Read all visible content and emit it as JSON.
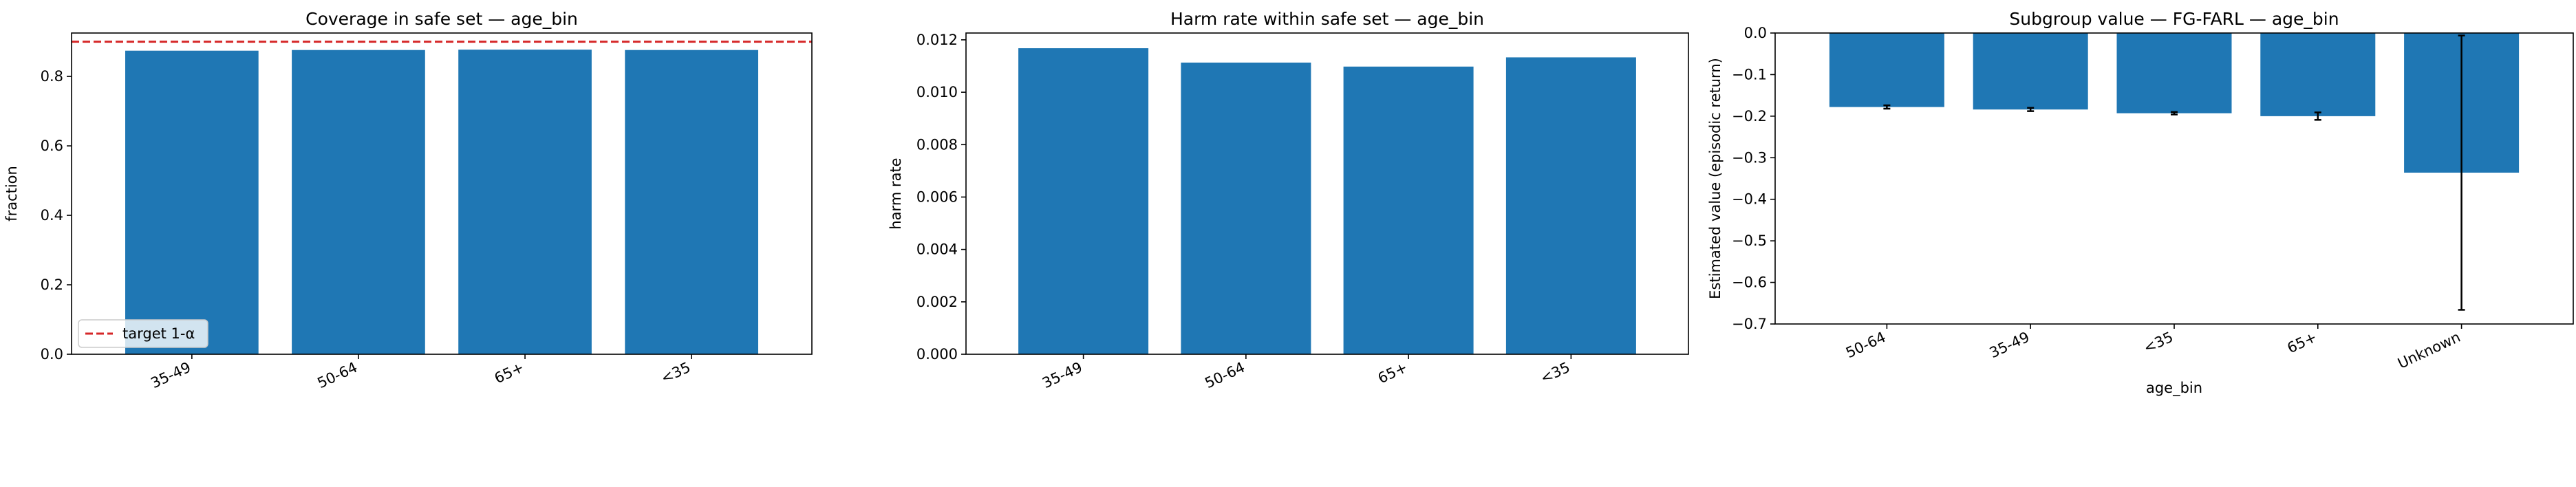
{
  "chart_data": [
    {
      "type": "bar",
      "title": "Coverage in safe set — age_bin",
      "xlabel": "",
      "ylabel": "fraction",
      "categories": [
        "35-49",
        "50-64",
        "65+",
        "<35"
      ],
      "values": [
        0.874,
        0.876,
        0.877,
        0.876
      ],
      "ylim": [
        0,
        0.925
      ],
      "yticks": [
        0.0,
        0.2,
        0.4,
        0.6,
        0.8
      ],
      "ytick_labels": [
        "0.0",
        "0.2",
        "0.4",
        "0.6",
        "0.8"
      ],
      "bar_color": "#1f77b4",
      "grid": false,
      "reference_line": {
        "y": 0.9,
        "label": "target 1-α",
        "color": "#d62728",
        "style": "dashed"
      },
      "legend": {
        "placement": "lower-left",
        "entries": [
          "target 1-α"
        ]
      }
    },
    {
      "type": "bar",
      "title": "Harm rate within safe set — age_bin",
      "xlabel": "",
      "ylabel": "harm rate",
      "categories": [
        "35-49",
        "50-64",
        "65+",
        "<35"
      ],
      "values": [
        0.01168,
        0.01113,
        0.01098,
        0.01133
      ],
      "ylim": [
        0,
        0.01226
      ],
      "yticks": [
        0.0,
        0.002,
        0.004,
        0.006,
        0.008,
        0.01,
        0.012
      ],
      "ytick_labels": [
        "0.000",
        "0.002",
        "0.004",
        "0.006",
        "0.008",
        "0.010",
        "0.012"
      ],
      "bar_color": "#1f77b4",
      "grid": false
    },
    {
      "type": "bar",
      "title": "Subgroup value — FG-FARL — age_bin",
      "xlabel": "age_bin",
      "ylabel": "Estimated value (episodic return)",
      "categories": [
        "50-64",
        "35-49",
        "<35",
        "65+",
        "Unknown"
      ],
      "values": [
        -0.178,
        -0.184,
        -0.193,
        -0.2,
        -0.336
      ],
      "errors": [
        0.004,
        0.004,
        0.003,
        0.009,
        0.33
      ],
      "ylim": [
        -0.7,
        0.0
      ],
      "yticks": [
        0.0,
        -0.1,
        -0.2,
        -0.3,
        -0.4,
        -0.5,
        -0.6,
        -0.7
      ],
      "ytick_labels": [
        "0.0",
        "−0.1",
        "−0.2",
        "−0.3",
        "−0.4",
        "−0.5",
        "−0.6",
        "−0.7"
      ],
      "bar_color": "#1f77b4",
      "grid": false
    }
  ]
}
